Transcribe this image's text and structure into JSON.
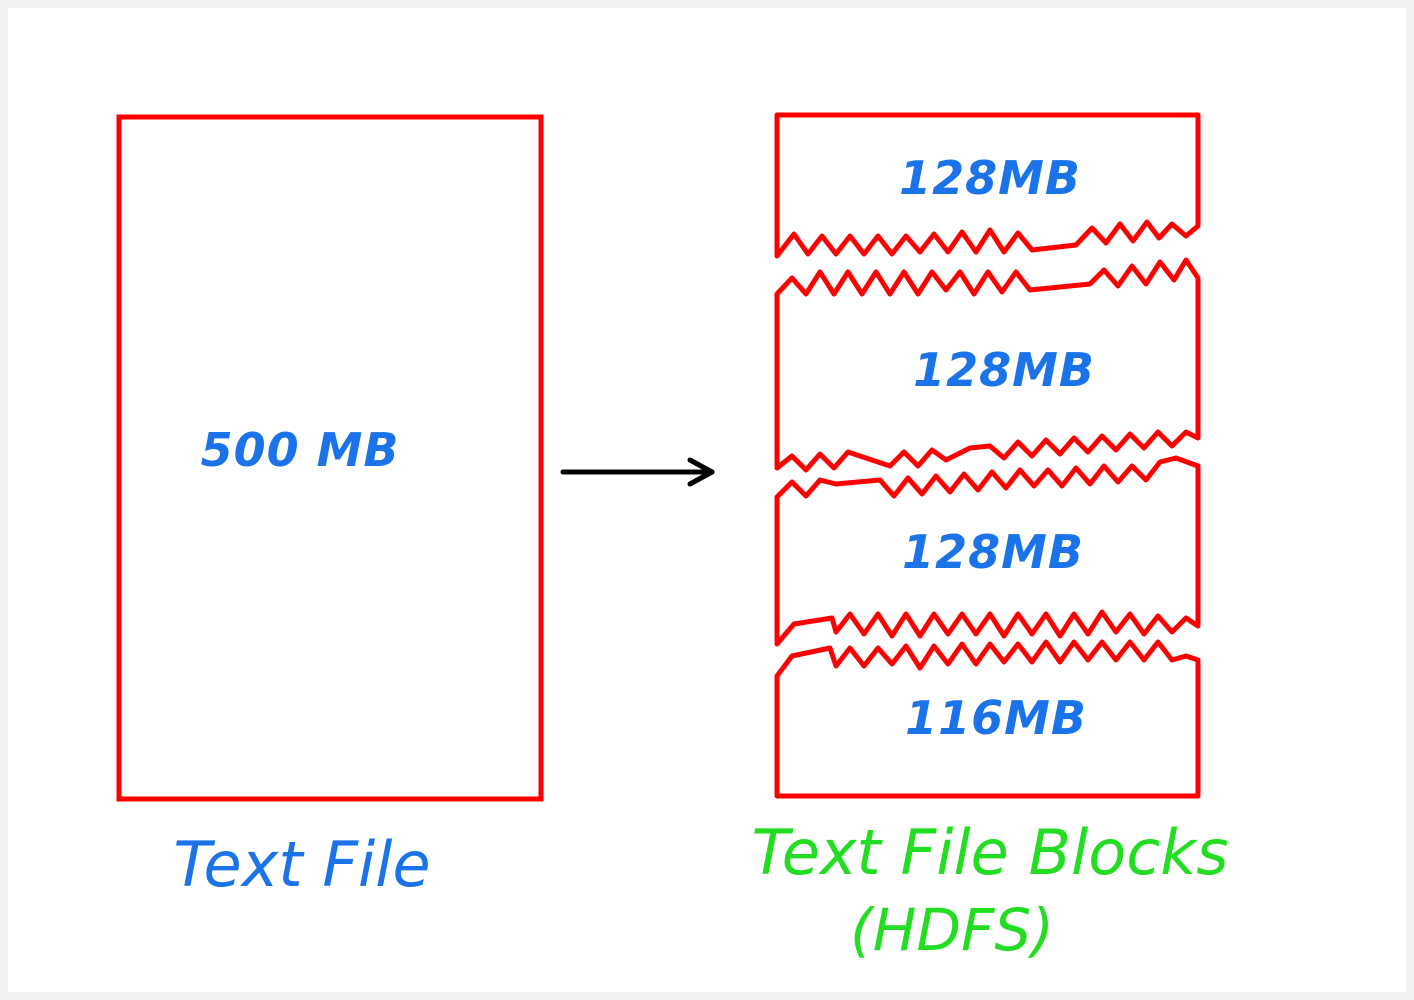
{
  "colors": {
    "background": "#ffffff",
    "frame": "#f2f2f2",
    "outline": "#ff0000",
    "size_text": "#1a73e8",
    "caption_left": "#1a73e8",
    "caption_right": "#22dd22",
    "arrow": "#000000"
  },
  "source": {
    "size": "500 MB",
    "caption": "Text File"
  },
  "blocks": [
    {
      "size": "128MB"
    },
    {
      "size": "128MB"
    },
    {
      "size": "128MB"
    },
    {
      "size": "116MB"
    }
  ],
  "target": {
    "caption_line1": "Text File Blocks",
    "caption_line2": "(HDFS)"
  },
  "arrow": {
    "direction": "right"
  }
}
